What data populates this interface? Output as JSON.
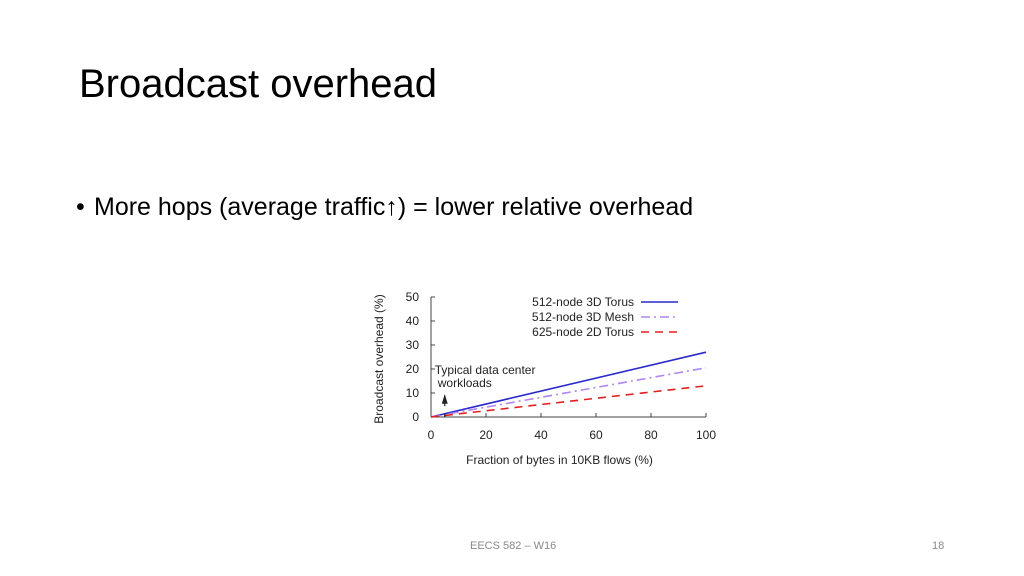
{
  "slide": {
    "title": "Broadcast overhead",
    "bullet_text": "More hops (average traffic↑) = lower relative overhead",
    "footer_center": "EECS 582 – W16",
    "page_number": "18"
  },
  "chart_data": {
    "type": "line",
    "title": "",
    "xlabel": "Fraction of bytes in 10KB flows (%)",
    "ylabel": "Broadcast overhead (%)",
    "xlim": [
      0,
      100
    ],
    "ylim": [
      0,
      50
    ],
    "xticks": [
      0,
      20,
      40,
      60,
      80,
      100
    ],
    "yticks": [
      0,
      10,
      20,
      30,
      40,
      50
    ],
    "legend_position": "top-right",
    "series": [
      {
        "name": "512-node 3D Torus",
        "color": "#2a2acb",
        "style": "solid",
        "x": [
          0,
          100
        ],
        "y": [
          0,
          27
        ]
      },
      {
        "name": "512-node 3D Mesh",
        "color": "#b086f0",
        "style": "dashdot",
        "x": [
          0,
          100
        ],
        "y": [
          0,
          20.5
        ]
      },
      {
        "name": "625-node 2D Torus",
        "color": "#e02020",
        "style": "dashed",
        "x": [
          0,
          100
        ],
        "y": [
          0,
          13
        ]
      }
    ],
    "annotation": {
      "text_line1": "Typical data center",
      "text_line2": "workloads",
      "x": 5
    }
  }
}
